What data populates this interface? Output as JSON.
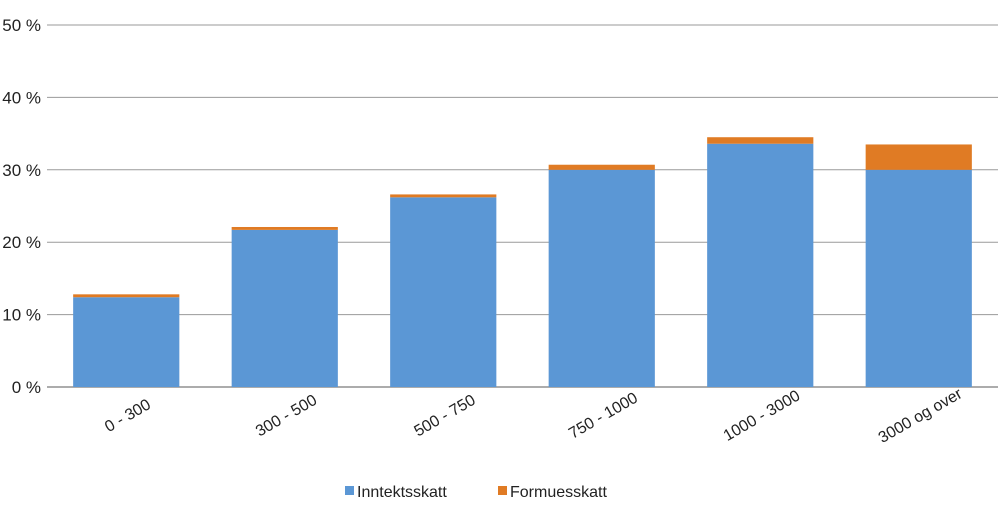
{
  "chart_data": {
    "type": "bar",
    "stacked": true,
    "categories": [
      "0 - 300",
      "300 - 500",
      "500 - 750",
      "750 - 1000",
      "1000 - 3000",
      "3000 og over"
    ],
    "series": [
      {
        "name": "Inntektsskatt",
        "color": "#5b97d5",
        "values": [
          12.4,
          21.7,
          26.2,
          30.0,
          33.6,
          30.0
        ]
      },
      {
        "name": "Formuesskatt",
        "color": "#e07b24",
        "values": [
          0.4,
          0.4,
          0.4,
          0.7,
          0.9,
          3.5
        ]
      }
    ],
    "ylim": [
      0,
      50
    ],
    "yticks": [
      0,
      10,
      20,
      30,
      40,
      50
    ],
    "ytick_labels": [
      "0 %",
      "10 %",
      "20 %",
      "30 %",
      "40 %",
      "50 %"
    ],
    "grid": true,
    "legend": "bottom"
  }
}
